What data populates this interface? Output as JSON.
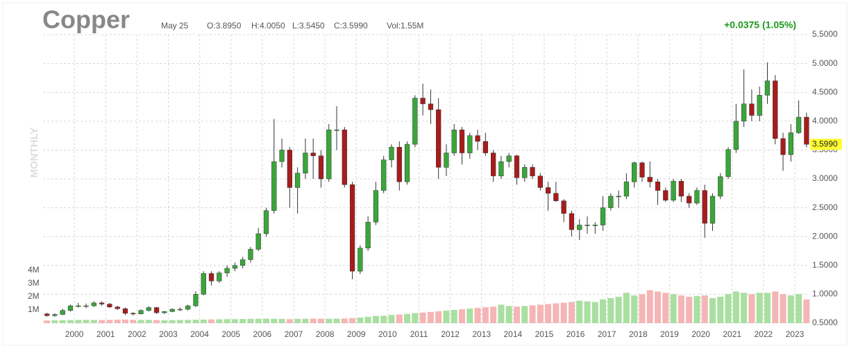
{
  "chart_data": {
    "type": "candlestick",
    "title": "Copper",
    "date": "May 25",
    "open_text": "O:3.8950",
    "high_text": "H:4.0050",
    "low_text": "L:3.5450",
    "close_text": "C:3.5990",
    "volume_text": "Vol:1.55M",
    "change_text": "+0.0375 (1.05%)",
    "period_label": "MONTHLY",
    "last_price": {
      "value": 3.599,
      "label": "3.5990"
    },
    "up_color": "#3aa63a",
    "down_color": "#a81c1c",
    "volume_up_color": "#a9dfa0",
    "volume_down_color": "#f5b5b5",
    "grid": true,
    "xlim": [
      1999,
      2023.4
    ],
    "xticks": [
      2000,
      2001,
      2002,
      2003,
      2004,
      2005,
      2006,
      2007,
      2008,
      2009,
      2010,
      2011,
      2012,
      2013,
      2014,
      2015,
      2016,
      2017,
      2018,
      2019,
      2020,
      2021,
      2022,
      2023
    ],
    "ylim": [
      0.5,
      5.5
    ],
    "yticks": [
      {
        "value": 0.5,
        "label": "0.5000"
      },
      {
        "value": 1.0,
        "label": "1.0000"
      },
      {
        "value": 1.5,
        "label": "1.5000"
      },
      {
        "value": 2.0,
        "label": "2.0000"
      },
      {
        "value": 2.5,
        "label": "2.5000"
      },
      {
        "value": 3.0,
        "label": "3.0000"
      },
      {
        "value": 3.5,
        "label": "3.5000"
      },
      {
        "value": 4.0,
        "label": "4.0000"
      },
      {
        "value": 4.5,
        "label": "4.5000"
      },
      {
        "value": 5.0,
        "label": "5.0000"
      },
      {
        "value": 5.5,
        "label": "5.5000"
      }
    ],
    "volume_lim": [
      0,
      4500000
    ],
    "volume_ticks": [
      {
        "value": 1000000,
        "label": "1M"
      },
      {
        "value": 2000000,
        "label": "2M"
      },
      {
        "value": 3000000,
        "label": "3M"
      },
      {
        "value": 4000000,
        "label": "4M"
      }
    ],
    "x": [
      1999,
      1999.25,
      1999.5,
      1999.75,
      2000,
      2000.25,
      2000.5,
      2000.75,
      2001,
      2001.25,
      2001.5,
      2001.75,
      2002,
      2002.25,
      2002.5,
      2002.75,
      2003,
      2003.25,
      2003.5,
      2003.75,
      2004,
      2004.25,
      2004.5,
      2004.75,
      2005,
      2005.25,
      2005.5,
      2005.75,
      2006,
      2006.25,
      2006.5,
      2006.75,
      2007,
      2007.25,
      2007.5,
      2007.75,
      2008,
      2008.25,
      2008.5,
      2008.75,
      2009,
      2009.25,
      2009.5,
      2009.75,
      2010,
      2010.25,
      2010.5,
      2010.75,
      2011,
      2011.25,
      2011.5,
      2011.75,
      2012,
      2012.25,
      2012.5,
      2012.75,
      2013,
      2013.25,
      2013.5,
      2013.75,
      2014,
      2014.25,
      2014.5,
      2014.75,
      2015,
      2015.25,
      2015.5,
      2015.75,
      2016,
      2016.25,
      2016.5,
      2016.75,
      2017,
      2017.25,
      2017.5,
      2017.75,
      2018,
      2018.25,
      2018.5,
      2018.75,
      2019,
      2019.25,
      2019.5,
      2019.75,
      2020,
      2020.25,
      2020.5,
      2020.75,
      2021,
      2021.25,
      2021.5,
      2021.75,
      2022,
      2022.25,
      2022.5,
      2022.75,
      2023,
      2023.25
    ],
    "open": [
      0.66,
      0.63,
      0.65,
      0.72,
      0.8,
      0.8,
      0.8,
      0.85,
      0.83,
      0.78,
      0.75,
      0.67,
      0.66,
      0.72,
      0.77,
      0.68,
      0.7,
      0.74,
      0.74,
      0.8,
      1.0,
      1.36,
      1.23,
      1.37,
      1.45,
      1.5,
      1.6,
      1.78,
      2.05,
      2.45,
      3.3,
      3.5,
      2.85,
      3.1,
      3.45,
      3.4,
      3.0,
      3.85,
      3.85,
      2.9,
      1.4,
      1.8,
      2.25,
      2.8,
      3.33,
      3.55,
      2.95,
      3.6,
      4.4,
      4.3,
      4.2,
      3.2,
      3.45,
      3.85,
      3.45,
      3.75,
      3.65,
      3.45,
      3.05,
      3.3,
      3.4,
      3.02,
      3.2,
      3.05,
      2.85,
      2.75,
      2.62,
      2.4,
      2.12,
      2.2,
      2.2,
      2.2,
      2.5,
      2.7,
      2.7,
      2.95,
      3.28,
      3.03,
      2.95,
      2.8,
      2.63,
      2.96,
      2.7,
      2.58,
      2.8,
      2.23,
      2.7,
      3.04,
      3.51,
      4.0,
      4.3,
      4.1,
      4.45,
      4.7,
      3.7,
      3.42,
      3.8,
      4.07
    ],
    "high": [
      0.68,
      0.67,
      0.75,
      0.82,
      0.85,
      0.84,
      0.88,
      0.88,
      0.85,
      0.8,
      0.77,
      0.69,
      0.74,
      0.79,
      0.78,
      0.71,
      0.76,
      0.77,
      0.82,
      1.05,
      1.4,
      1.4,
      1.4,
      1.5,
      1.55,
      1.65,
      1.82,
      2.15,
      2.5,
      4.04,
      3.7,
      3.55,
      3.2,
      3.7,
      3.7,
      3.5,
      3.95,
      4.26,
      3.9,
      2.95,
      1.85,
      2.35,
      2.95,
      3.4,
      3.6,
      3.65,
      3.65,
      4.45,
      4.65,
      4.55,
      4.4,
      3.6,
      3.95,
      3.9,
      3.8,
      3.85,
      3.8,
      3.5,
      3.4,
      3.45,
      3.42,
      3.25,
      3.25,
      3.1,
      2.95,
      2.95,
      2.65,
      2.45,
      2.3,
      2.35,
      2.25,
      2.7,
      2.75,
      2.8,
      3.1,
      3.3,
      3.3,
      3.3,
      3.0,
      2.85,
      3.0,
      3.0,
      2.75,
      2.85,
      2.9,
      2.75,
      3.1,
      3.55,
      4.3,
      4.9,
      4.55,
      4.6,
      5.02,
      4.8,
      3.8,
      3.95,
      4.36,
      4.15
    ],
    "low": [
      0.61,
      0.61,
      0.64,
      0.7,
      0.77,
      0.76,
      0.78,
      0.8,
      0.76,
      0.73,
      0.64,
      0.63,
      0.65,
      0.7,
      0.66,
      0.66,
      0.69,
      0.71,
      0.72,
      0.78,
      0.98,
      1.15,
      1.2,
      1.3,
      1.4,
      1.45,
      1.55,
      1.75,
      2.0,
      2.4,
      3.2,
      2.5,
      2.4,
      3.0,
      3.0,
      2.85,
      2.95,
      3.5,
      2.85,
      1.26,
      1.35,
      1.75,
      2.2,
      2.75,
      3.2,
      2.8,
      2.9,
      3.55,
      4.1,
      3.95,
      3.0,
      3.05,
      3.4,
      3.25,
      3.35,
      3.5,
      3.4,
      2.95,
      3.0,
      3.2,
      2.9,
      2.95,
      3.0,
      2.8,
      2.45,
      2.6,
      2.25,
      2.0,
      1.94,
      2.05,
      2.05,
      2.1,
      2.45,
      2.5,
      2.65,
      2.85,
      2.95,
      2.85,
      2.55,
      2.6,
      2.6,
      2.6,
      2.5,
      2.55,
      1.98,
      2.1,
      2.65,
      3.0,
      3.45,
      3.9,
      4.0,
      4.0,
      4.3,
      3.6,
      3.14,
      3.3,
      3.78,
      3.55
    ],
    "close": [
      0.63,
      0.65,
      0.72,
      0.8,
      0.8,
      0.8,
      0.85,
      0.83,
      0.78,
      0.75,
      0.67,
      0.66,
      0.72,
      0.77,
      0.68,
      0.7,
      0.74,
      0.74,
      0.8,
      1.0,
      1.36,
      1.23,
      1.37,
      1.45,
      1.5,
      1.6,
      1.78,
      2.05,
      2.45,
      3.3,
      3.5,
      2.85,
      3.1,
      3.45,
      3.4,
      3.0,
      3.85,
      3.85,
      2.9,
      1.4,
      1.8,
      2.25,
      2.8,
      3.33,
      3.55,
      2.95,
      3.6,
      4.4,
      4.3,
      4.2,
      3.2,
      3.45,
      3.85,
      3.45,
      3.75,
      3.65,
      3.45,
      3.05,
      3.3,
      3.4,
      3.02,
      3.2,
      3.05,
      2.85,
      2.75,
      2.62,
      2.4,
      2.12,
      2.2,
      2.2,
      2.2,
      2.5,
      2.7,
      2.7,
      2.95,
      3.28,
      3.03,
      2.95,
      2.8,
      2.63,
      2.96,
      2.7,
      2.58,
      2.8,
      2.23,
      2.7,
      3.04,
      3.51,
      4.0,
      4.3,
      4.1,
      4.45,
      4.7,
      3.7,
      3.42,
      3.8,
      4.07,
      3.6
    ],
    "volume": [
      200000,
      210000,
      220000,
      230000,
      240000,
      250000,
      240000,
      230000,
      250000,
      260000,
      270000,
      250000,
      240000,
      250000,
      230000,
      220000,
      230000,
      240000,
      250000,
      260000,
      270000,
      280000,
      290000,
      300000,
      300000,
      310000,
      320000,
      330000,
      340000,
      330000,
      320000,
      300000,
      320000,
      330000,
      340000,
      330000,
      330000,
      340000,
      350000,
      380000,
      420000,
      480000,
      540000,
      560000,
      620000,
      650000,
      700000,
      760000,
      800000,
      850000,
      900000,
      950000,
      1000000,
      1050000,
      1100000,
      1150000,
      1200000,
      1250000,
      1400000,
      1300000,
      1250000,
      1300000,
      1350000,
      1400000,
      1450000,
      1500000,
      1550000,
      1600000,
      1700000,
      1650000,
      1600000,
      1800000,
      1900000,
      2000000,
      2300000,
      2100000,
      2200000,
      2500000,
      2400000,
      2300000,
      2200000,
      2100000,
      2000000,
      2050000,
      2100000,
      1900000,
      2000000,
      2200000,
      2400000,
      2300000,
      2200000,
      2300000,
      2300000,
      2400000,
      2200000,
      2100000,
      2200000,
      1800000
    ]
  }
}
